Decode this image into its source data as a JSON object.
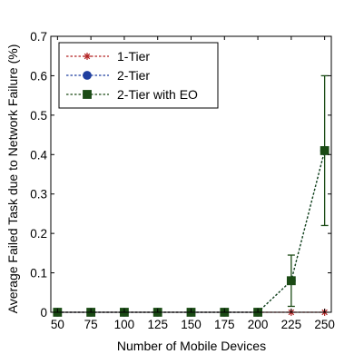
{
  "chart_data": {
    "type": "line",
    "title": "",
    "xlabel": "Number of Mobile Devices",
    "ylabel": "Average Failed Task due to Network Failure (%)",
    "x": [
      50,
      75,
      100,
      125,
      150,
      175,
      200,
      225,
      250
    ],
    "xlim": [
      45,
      255
    ],
    "ylim": [
      0,
      0.7
    ],
    "xticks": [
      "50",
      "75",
      "100",
      "125",
      "150",
      "175",
      "200",
      "225",
      "250"
    ],
    "yticks": [
      "0",
      "0.1",
      "0.2",
      "0.3",
      "0.4",
      "0.5",
      "0.6",
      "0.7"
    ],
    "grid": false,
    "legend_position": "top-left",
    "series": [
      {
        "name": "1-Tier",
        "color": "#b22222",
        "marker": "asterisk",
        "values": [
          0,
          0,
          0,
          0,
          0,
          0,
          0,
          0,
          0
        ]
      },
      {
        "name": "2-Tier",
        "color": "#1f3f9f",
        "marker": "circle",
        "values": [
          0,
          0,
          0,
          0,
          0,
          0,
          0,
          0.08,
          0.41
        ]
      },
      {
        "name": "2-Tier with EO",
        "color": "#1a4a14",
        "marker": "square",
        "values": [
          0,
          0,
          0,
          0,
          0,
          0,
          0,
          0.08,
          0.41
        ],
        "error": [
          0,
          0,
          0,
          0,
          0,
          0,
          0,
          0.065,
          0.19
        ]
      }
    ]
  }
}
